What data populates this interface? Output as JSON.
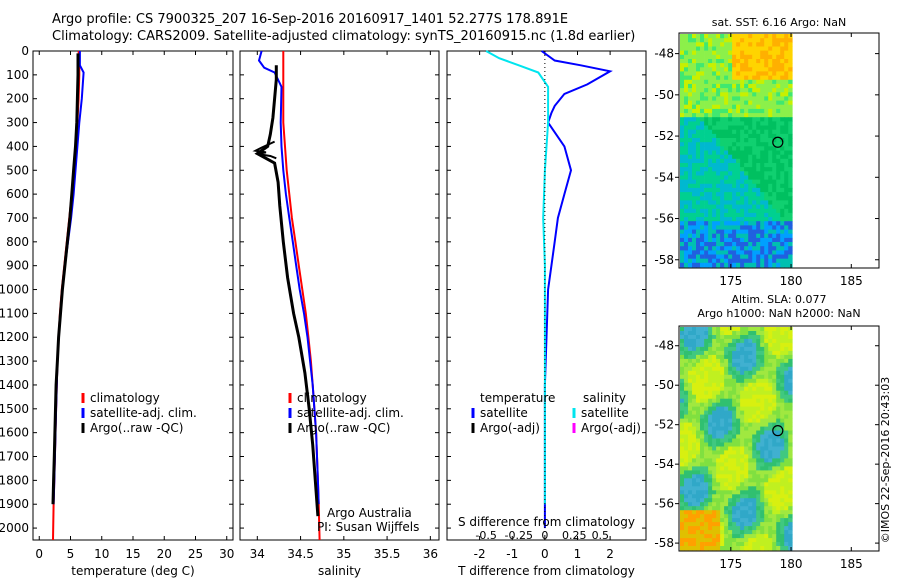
{
  "header": {
    "line1": "Argo profile: CS 7900325_207 16-Sep-2016 20160917_1401 52.277S 178.891E",
    "line2": "Climatology: CARS2009. Satellite-adjusted climatology: synTS_20160915.nc (1.8d earlier)"
  },
  "colors": {
    "climatology": "#ff0000",
    "satellite": "#0000ff",
    "argo": "#000000",
    "satellite_salinity": "#00e5ee",
    "argo_salinity": "#ff00ff"
  },
  "chart_data": [
    {
      "id": "temperature",
      "type": "line",
      "xlabel": "temperature (deg C)",
      "xlim": [
        -1,
        31
      ],
      "ylim": [
        0,
        2050
      ],
      "y_reversed": true,
      "xticks": [
        "0",
        "5",
        "10",
        "15",
        "20",
        "25",
        "30"
      ],
      "yticks": [
        "0",
        "100",
        "200",
        "300",
        "400",
        "500",
        "600",
        "700",
        "800",
        "900",
        "1000",
        "1100",
        "1200",
        "1300",
        "1400",
        "1500",
        "1600",
        "1700",
        "1800",
        "1900",
        "2000"
      ],
      "legend": [
        "climatology",
        "satellite-adj. clim.",
        "Argo(..raw -QC)"
      ],
      "series": [
        {
          "name": "climatology",
          "color": "#ff0000",
          "x": [
            6.3,
            6.4,
            6.4,
            6.3,
            6.1,
            5.9,
            5.6,
            5.2,
            4.8,
            4.4,
            4.0,
            3.6,
            3.3,
            3.1,
            2.9,
            2.8,
            2.7,
            2.6,
            2.5,
            2.4,
            2.3,
            2.2
          ],
          "y": [
            0,
            50,
            100,
            200,
            300,
            400,
            500,
            600,
            700,
            800,
            900,
            1000,
            1100,
            1200,
            1300,
            1400,
            1500,
            1600,
            1700,
            1800,
            1900,
            2050
          ]
        },
        {
          "name": "satellite-adj. clim.",
          "color": "#0000ff",
          "x": [
            6.5,
            6.5,
            7.1,
            6.8,
            6.4,
            6.1,
            5.8,
            5.5,
            5.1,
            4.6,
            4.1,
            3.7,
            3.4,
            3.1,
            2.9,
            2.8,
            2.7,
            2.6,
            2.5,
            2.4,
            2.3
          ],
          "y": [
            0,
            60,
            90,
            200,
            300,
            400,
            500,
            600,
            700,
            800,
            900,
            1000,
            1100,
            1200,
            1300,
            1400,
            1500,
            1600,
            1700,
            1800,
            1900
          ]
        },
        {
          "name": "Argo(..raw -QC)",
          "color": "#000000",
          "x": [
            6.2,
            6.2,
            6.1,
            6.0,
            5.8,
            5.5,
            5.2,
            4.9,
            4.5,
            4.1,
            3.7,
            3.4,
            3.1,
            2.9,
            2.7,
            2.6,
            2.5,
            2.4,
            2.3,
            2.2
          ],
          "y": [
            10,
            100,
            200,
            300,
            400,
            500,
            600,
            700,
            800,
            900,
            1000,
            1100,
            1200,
            1300,
            1400,
            1500,
            1600,
            1700,
            1800,
            1900
          ]
        }
      ]
    },
    {
      "id": "salinity",
      "type": "line",
      "xlabel": "salinity",
      "xlim": [
        33.8,
        36.1
      ],
      "ylim": [
        0,
        2050
      ],
      "y_reversed": true,
      "xticks": [
        "34",
        "34.5",
        "35",
        "35.5",
        "36"
      ],
      "legend": [
        "climatology",
        "satellite-adj. clim.",
        "Argo(..raw -QC)"
      ],
      "annotations": [
        "Argo Australia",
        "PI: Susan Wijffels"
      ],
      "series": [
        {
          "name": "climatology",
          "color": "#ff0000",
          "x": [
            34.3,
            34.3,
            34.3,
            34.3,
            34.32,
            34.34,
            34.37,
            34.4,
            34.44,
            34.48,
            34.52,
            34.56,
            34.59,
            34.62,
            34.64,
            34.66,
            34.68,
            34.69,
            34.7,
            34.71,
            34.72
          ],
          "y": [
            0,
            100,
            200,
            300,
            400,
            500,
            600,
            700,
            800,
            900,
            1000,
            1100,
            1200,
            1300,
            1400,
            1500,
            1600,
            1700,
            1800,
            1900,
            2050
          ]
        },
        {
          "name": "satellite-adj. clim.",
          "color": "#0000ff",
          "x": [
            34.05,
            34.02,
            34.08,
            34.2,
            34.28,
            34.27,
            34.28,
            34.3,
            34.33,
            34.37,
            34.41,
            34.45,
            34.49,
            34.54,
            34.58,
            34.61,
            34.64,
            34.66,
            34.68,
            34.69,
            34.7,
            34.71
          ],
          "y": [
            0,
            40,
            70,
            90,
            150,
            300,
            400,
            500,
            600,
            700,
            800,
            900,
            1000,
            1100,
            1200,
            1300,
            1400,
            1500,
            1600,
            1700,
            1800,
            1900
          ]
        },
        {
          "name": "Argo(..raw -QC)",
          "color": "#000000",
          "x": [
            34.22,
            34.22,
            34.2,
            34.18,
            34.15,
            34.12,
            34.0,
            34.2,
            34.24,
            34.26,
            34.3,
            34.35,
            34.42,
            34.48,
            34.55,
            34.6,
            34.64,
            34.67,
            34.7
          ],
          "y": [
            60,
            120,
            200,
            280,
            350,
            400,
            430,
            470,
            550,
            650,
            800,
            950,
            1100,
            1200,
            1350,
            1500,
            1650,
            1800,
            1950
          ]
        }
      ]
    },
    {
      "id": "difference",
      "type": "line",
      "xlabel": "T difference from climatology",
      "xlabel_top": "S difference from climatology",
      "xlim": [
        -3,
        3.1
      ],
      "ylim": [
        0,
        2050
      ],
      "y_reversed": true,
      "xticks": [
        "-2",
        "-1",
        "0",
        "1",
        "2"
      ],
      "xticks_S": [
        "-0.5",
        "-0.25",
        "0",
        "0.25",
        "0.5"
      ],
      "legend_temperature": [
        "temperature",
        "satellite",
        "Argo(-adj)"
      ],
      "legend_salinity": [
        "salinity",
        "satellite",
        "Argo(-adj)"
      ],
      "series": [
        {
          "name": "temperature satellite",
          "color": "#0000ff",
          "x": [
            -0.1,
            0.3,
            1.1,
            2.0,
            1.3,
            0.6,
            0.3,
            0.2,
            0.1,
            0.6,
            0.8,
            0.6,
            0.4,
            0.3,
            0.2,
            0.1,
            0.05,
            0.0,
            0.0,
            0.0
          ],
          "y": [
            0,
            40,
            60,
            85,
            140,
            180,
            230,
            260,
            300,
            400,
            500,
            600,
            700,
            800,
            900,
            1000,
            1200,
            1400,
            1700,
            2000
          ]
        },
        {
          "name": "salinity satellite",
          "color": "#00e5ee",
          "x": [
            -1.8,
            -1.4,
            -0.8,
            -0.2,
            0.1,
            0.1,
            0.0,
            -0.05,
            0.0,
            0.0,
            0.0,
            0.0
          ],
          "y": [
            0,
            30,
            60,
            90,
            150,
            300,
            500,
            700,
            900,
            1200,
            1500,
            1900
          ]
        }
      ]
    },
    {
      "id": "sst-map",
      "type": "heatmap",
      "title": "sat. SST: 6.16 Argo: NaN",
      "xticks": [
        "175",
        "180",
        "185"
      ],
      "yticks": [
        "-48",
        "-50",
        "-52",
        "-54",
        "-56",
        "-58"
      ],
      "marker": {
        "lon": 178.9,
        "lat": -52.3
      }
    },
    {
      "id": "sla-map",
      "type": "heatmap",
      "title_line1": "Altim. SLA: 0.077",
      "title_line2": "Argo h1000: NaN h2000: NaN",
      "xticks": [
        "175",
        "180",
        "185"
      ],
      "yticks": [
        "-48",
        "-50",
        "-52",
        "-54",
        "-56",
        "-58"
      ],
      "marker": {
        "lon": 178.9,
        "lat": -52.3
      }
    }
  ],
  "footer": {
    "credit": "©IMOS 22-Sep-2016 20:43:03"
  }
}
